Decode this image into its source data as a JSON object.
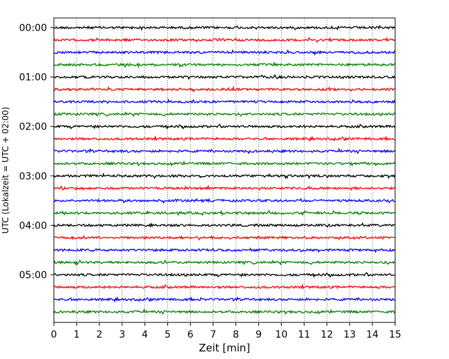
{
  "chart_data": {
    "type": "line",
    "subtype": "helicorder",
    "xlabel": "Zeit  [min]",
    "ylabel": "UTC (Lokalzeit = UTC + 02:00)",
    "xlim": [
      0,
      15
    ],
    "x_ticks": [
      "0",
      "1",
      "2",
      "3",
      "4",
      "5",
      "6",
      "7",
      "8",
      "9",
      "10",
      "11",
      "12",
      "13",
      "14",
      "15"
    ],
    "y_tick_labels": [
      "00:00",
      "01:00",
      "02:00",
      "03:00",
      "04:00",
      "05:00"
    ],
    "row_interval_minutes": 15,
    "trace_count": 24,
    "trace_colors": [
      "#000000",
      "#ff0000",
      "#0000ff",
      "#008000"
    ],
    "vertical_grid": true,
    "grid_style": "dotted"
  }
}
